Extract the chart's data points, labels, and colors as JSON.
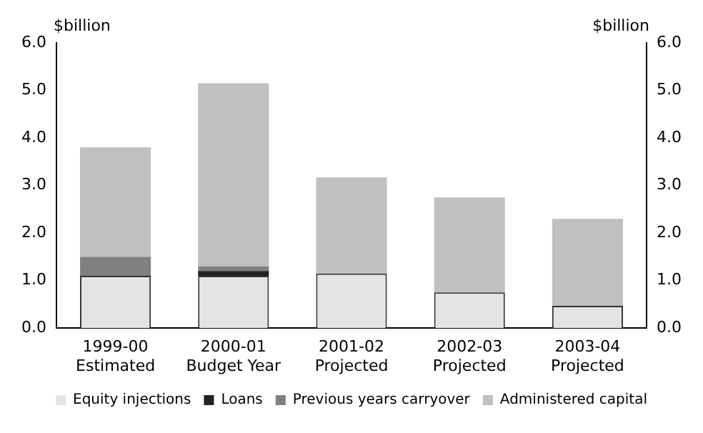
{
  "chart_data": {
    "type": "bar",
    "stacked": true,
    "ylabel": "$billion",
    "y2label": "$billion",
    "categories": [
      "1999-00\nEstimated",
      "2000-01\nBudget Year",
      "2001-02\nProjected",
      "2002-03\nProjected",
      "2003-04\nProjected"
    ],
    "series": [
      {
        "name": "Equity injections",
        "color": "#e4e4e4",
        "values": [
          1.1,
          1.1,
          1.15,
          0.75,
          0.47
        ]
      },
      {
        "name": "Loans",
        "color": "#222222",
        "values": [
          0,
          0.1,
          0,
          0,
          0
        ]
      },
      {
        "name": "Previous years carryover",
        "color": "#808080",
        "values": [
          0.4,
          0.1,
          0,
          0,
          0
        ]
      },
      {
        "name": "Administered capital",
        "color": "#c0c0c0",
        "values": [
          2.3,
          3.85,
          2.02,
          2.0,
          1.83
        ]
      }
    ],
    "ylim": [
      0,
      6
    ],
    "yticks": [
      {
        "value": 0,
        "label": "0.0"
      },
      {
        "value": 1,
        "label": "1.0"
      },
      {
        "value": 2,
        "label": "2.0"
      },
      {
        "value": 3,
        "label": "3.0"
      },
      {
        "value": 4,
        "label": "4.0"
      },
      {
        "value": 5,
        "label": "5.0"
      },
      {
        "value": 6,
        "label": "6.0"
      }
    ],
    "y2lim": [
      0,
      6
    ],
    "y2ticks": [
      {
        "value": 0,
        "label": "0.0"
      },
      {
        "value": 1,
        "label": "1.0"
      },
      {
        "value": 2,
        "label": "2.0"
      },
      {
        "value": 3,
        "label": "3.0"
      },
      {
        "value": 4,
        "label": "4.0"
      },
      {
        "value": 5,
        "label": "5.0"
      },
      {
        "value": 6,
        "label": "6.0"
      }
    ],
    "grid": false,
    "legend": "bottom"
  }
}
